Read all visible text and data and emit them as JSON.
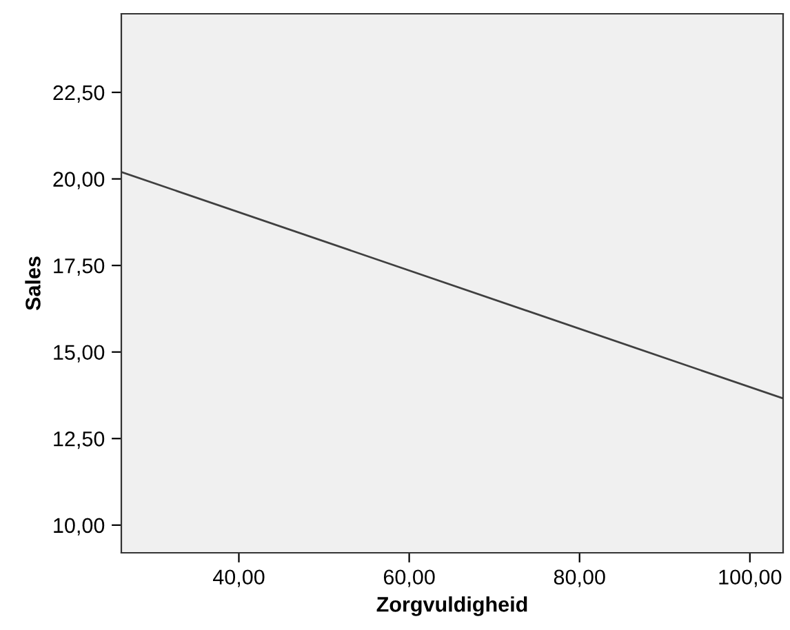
{
  "chart_data": {
    "type": "line",
    "xlabel": "Zorgvuldigheid",
    "ylabel": "Sales",
    "series": [
      {
        "x": [
          26.2,
          103.9
        ],
        "values": [
          20.2,
          13.66
        ],
        "color": "#404040"
      }
    ],
    "xlim": [
      26.2,
      103.9
    ],
    "ylim": [
      9.2,
      24.77
    ],
    "xticks": [
      {
        "value": 40,
        "label": "40,00"
      },
      {
        "value": 60,
        "label": "60,00"
      },
      {
        "value": 80,
        "label": "80,00"
      },
      {
        "value": 100,
        "label": "100,00"
      }
    ],
    "yticks": [
      {
        "value": 10,
        "label": "10,00"
      },
      {
        "value": 12.5,
        "label": "12,50"
      },
      {
        "value": 15,
        "label": "15,00"
      },
      {
        "value": 17.5,
        "label": "17,50"
      },
      {
        "value": 20,
        "label": "20,00"
      },
      {
        "value": 22.5,
        "label": "22,50"
      }
    ],
    "grid": false,
    "marker": "none",
    "line_style": "solid"
  }
}
